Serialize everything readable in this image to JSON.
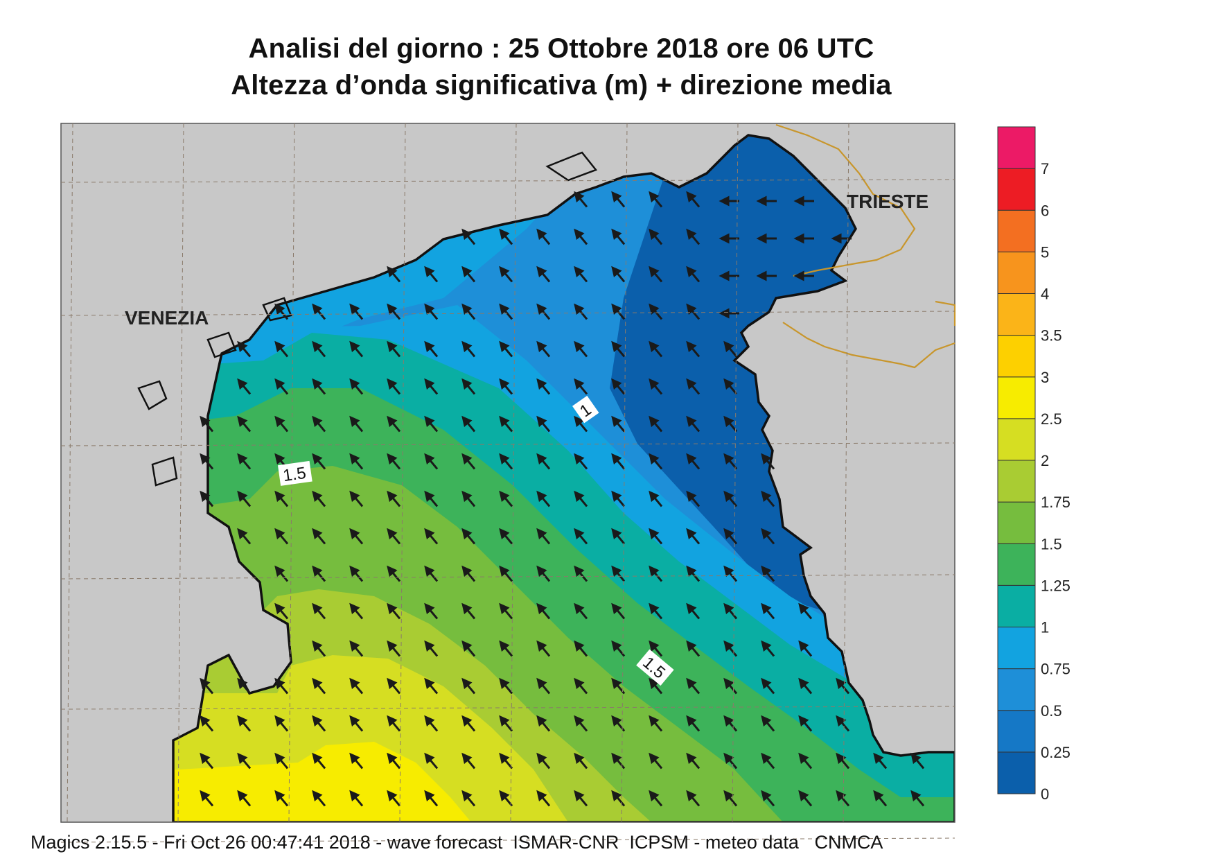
{
  "title": {
    "line1": "Analisi del giorno :  25  Ottobre  2018   ore 06 UTC",
    "line2": "Altezza d’onda significativa (m) + direzione media"
  },
  "map_labels": {
    "venezia": "VENEZIA",
    "trieste": "TRIESTE",
    "contour_a": "1.5",
    "contour_b": "1.5",
    "contour_c": "1"
  },
  "legend": {
    "levels": [
      "0",
      "0.25",
      "0.5",
      "0.75",
      "1",
      "1.25",
      "1.5",
      "1.75",
      "2",
      "2.5",
      "3",
      "3.5",
      "4",
      "5",
      "6",
      "7"
    ],
    "colors": [
      "#0b5fab",
      "#1578c6",
      "#1e8fd8",
      "#12a3e0",
      "#0aaea3",
      "#3db35a",
      "#76bd3e",
      "#a9cc33",
      "#d6de22",
      "#f7ec00",
      "#fdd000",
      "#fbb418",
      "#f7941d",
      "#f36f21",
      "#ed1c24",
      "#ec1a66"
    ]
  },
  "colors": {
    "land": "#c8c8c8",
    "coast": "#111111",
    "border": "#c8962c",
    "arrow": "#1a1a1a"
  },
  "footer": "Magics 2.15.5 - Fri Oct 26 00:47:41 2018 - wave forecast  ISMAR-CNR  ICPSM - meteo data   CNMCA"
}
